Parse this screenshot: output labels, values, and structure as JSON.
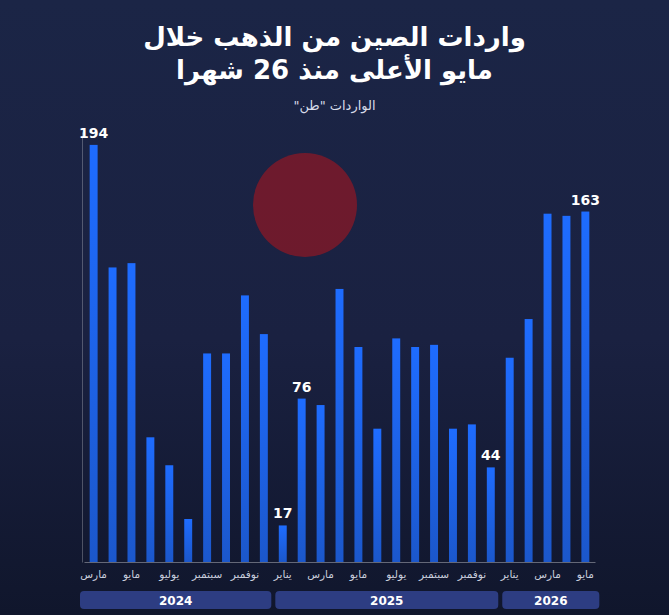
{
  "chart_data": {
    "type": "bar",
    "title": "واردات الصين من الذهب خلال مايو الأعلى منذ 26 شهرا",
    "subtitle": "الواردات \"طن\"",
    "categories": [
      "مارس",
      null,
      "مايو",
      null,
      "يوليو",
      null,
      "سبتمبر",
      null,
      "نوفمبر",
      null,
      "يناير",
      null,
      "مارس",
      null,
      "مايو",
      null,
      "يوليو",
      null,
      "سبتمبر",
      null,
      "نوفمبر",
      null,
      "يناير",
      null,
      "مارس",
      null,
      "مايو"
    ],
    "values": [
      194,
      137,
      139,
      58,
      45,
      20,
      97,
      97,
      124,
      106,
      17,
      76,
      73,
      127,
      100,
      62,
      104,
      100,
      101,
      62,
      64,
      44,
      95,
      113,
      162,
      161,
      163
    ],
    "value_labels": [
      "194",
      null,
      null,
      null,
      null,
      null,
      null,
      null,
      null,
      null,
      "17",
      "76",
      null,
      null,
      null,
      null,
      null,
      null,
      null,
      null,
      null,
      "44",
      null,
      null,
      null,
      null,
      "163"
    ],
    "data_labels": true,
    "groups": [
      {
        "label": "2024",
        "first": 0,
        "last": 9
      },
      {
        "label": "2025",
        "first": 10,
        "last": 21
      },
      {
        "label": "2026",
        "first": 22,
        "last": 26
      }
    ],
    "color": "#1e6cff",
    "ylim": [
      0,
      200
    ],
    "yticks": [],
    "tick_labels": "x",
    "grid": false
  }
}
